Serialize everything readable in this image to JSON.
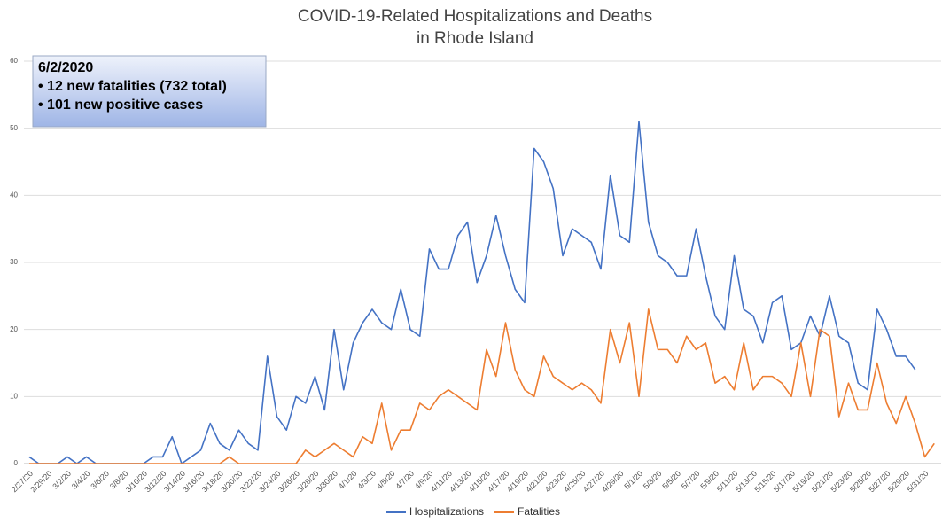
{
  "chart_data": {
    "type": "line",
    "title": [
      "COVID-19-Related Hospitalizations and Deaths",
      "in Rhode Island"
    ],
    "annotation": [
      "6/2/2020",
      "• 12 new fatalities (732 total)",
      "• 101 new positive cases"
    ],
    "categories": [
      "2/27/20",
      null,
      "2/29/20",
      null,
      "3/2/20",
      null,
      "3/4/20",
      null,
      "3/6/20",
      null,
      "3/8/20",
      null,
      "3/10/20",
      null,
      "3/12/20",
      null,
      "3/14/20",
      null,
      "3/16/20",
      null,
      "3/18/20",
      null,
      "3/20/20",
      null,
      "3/22/20",
      null,
      "3/24/20",
      null,
      "3/26/20",
      null,
      "3/28/20",
      null,
      "3/30/20",
      null,
      "4/1/20",
      null,
      "4/3/20",
      null,
      "4/5/20",
      null,
      "4/7/20",
      null,
      "4/9/20",
      null,
      "4/11/20",
      null,
      "4/13/20",
      null,
      "4/15/20",
      null,
      "4/17/20",
      null,
      "4/19/20",
      null,
      "4/21/20",
      null,
      "4/23/20",
      null,
      "4/25/20",
      null,
      "4/27/20",
      null,
      "4/29/20",
      null,
      "5/1/20",
      null,
      "5/3/20",
      null,
      "5/5/20",
      null,
      "5/7/20",
      null,
      "5/9/20",
      null,
      "5/11/20",
      null,
      "5/13/20",
      null,
      "5/15/20",
      null,
      "5/17/20",
      null,
      "5/19/20",
      null,
      "5/21/20",
      null,
      "5/23/20",
      null,
      "5/25/20",
      null,
      "5/27/20",
      null,
      "5/29/20",
      null,
      "5/31/20",
      null
    ],
    "series": [
      {
        "name": "Hospitalizations",
        "color": "#4472c4",
        "values": [
          1,
          0,
          0,
          0,
          1,
          0,
          1,
          0,
          0,
          0,
          0,
          0,
          0,
          1,
          1,
          4,
          0,
          1,
          2,
          6,
          3,
          2,
          5,
          3,
          2,
          16,
          7,
          5,
          10,
          9,
          13,
          8,
          20,
          11,
          18,
          21,
          23,
          21,
          20,
          26,
          20,
          19,
          32,
          29,
          29,
          34,
          36,
          27,
          31,
          37,
          31,
          26,
          24,
          47,
          45,
          41,
          31,
          35,
          34,
          33,
          29,
          43,
          34,
          33,
          51,
          36,
          31,
          30,
          28,
          28,
          35,
          28,
          22,
          20,
          31,
          23,
          22,
          18,
          24,
          25,
          17,
          18,
          22,
          19,
          25,
          19,
          18,
          12,
          11,
          23,
          20,
          16,
          16,
          14,
          null,
          null
        ]
      },
      {
        "name": "Fatalities",
        "color": "#ed7d31",
        "values": [
          0,
          0,
          0,
          0,
          0,
          0,
          0,
          0,
          0,
          0,
          0,
          0,
          0,
          0,
          0,
          0,
          0,
          0,
          0,
          0,
          0,
          1,
          0,
          0,
          0,
          0,
          0,
          0,
          0,
          2,
          1,
          2,
          3,
          2,
          1,
          4,
          3,
          9,
          2,
          5,
          5,
          9,
          8,
          10,
          11,
          10,
          9,
          8,
          17,
          13,
          21,
          14,
          11,
          10,
          16,
          13,
          12,
          11,
          12,
          11,
          9,
          20,
          15,
          21,
          10,
          23,
          17,
          17,
          15,
          19,
          17,
          18,
          12,
          13,
          11,
          18,
          11,
          13,
          13,
          12,
          10,
          18,
          10,
          20,
          19,
          7,
          12,
          8,
          8,
          15,
          9,
          6,
          10,
          6,
          1,
          3
        ]
      }
    ],
    "ylim": [
      0,
      60
    ],
    "yticks": [
      0,
      10,
      20,
      30,
      40,
      50,
      60
    ],
    "grid": true,
    "legend": "bottom"
  }
}
